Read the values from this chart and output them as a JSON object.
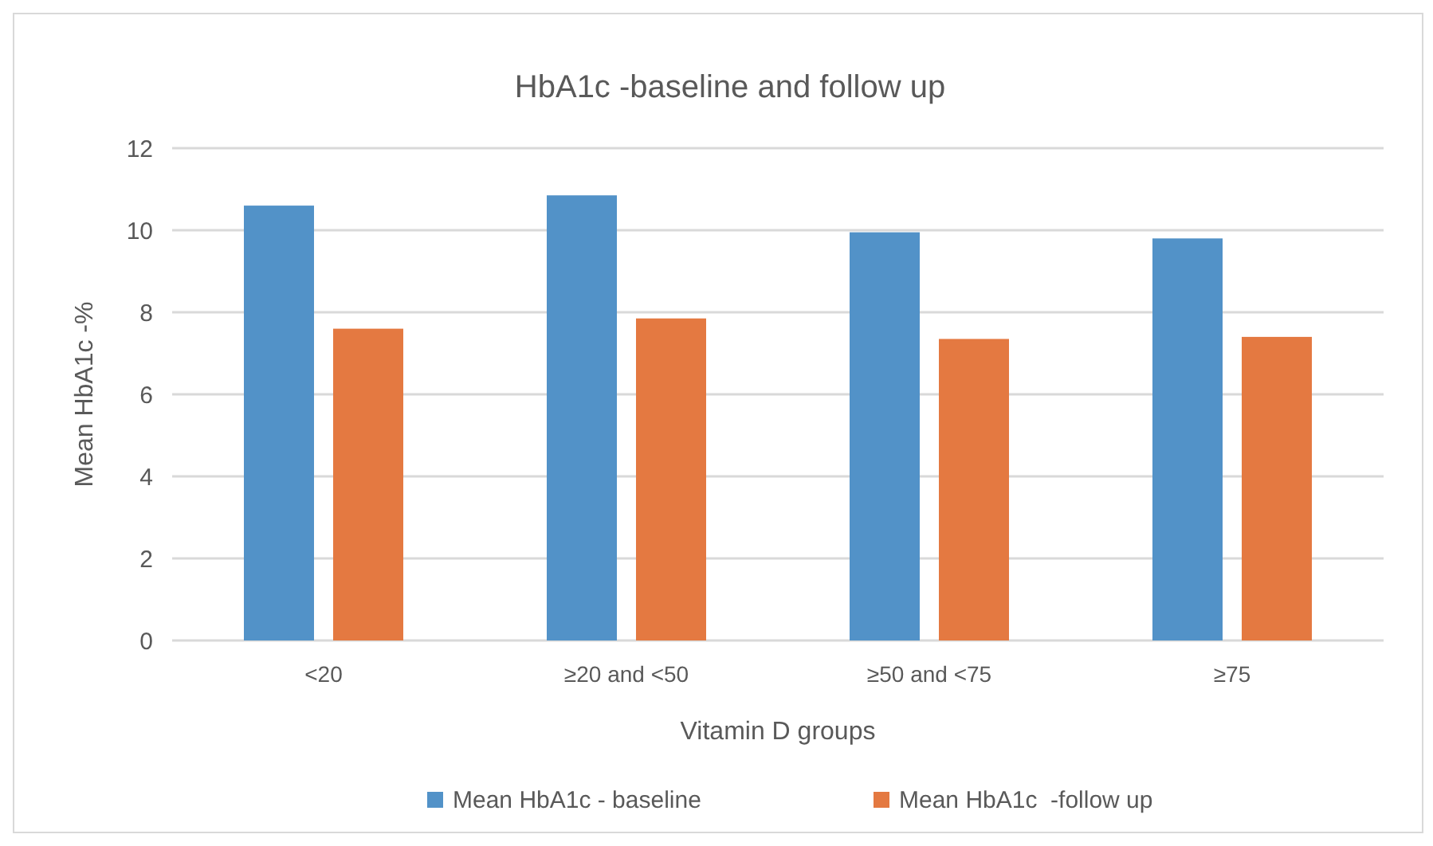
{
  "chart_data": {
    "type": "bar",
    "title": "HbA1c -baseline and follow up",
    "xlabel": "Vitamin D groups",
    "ylabel": "Mean HbA1c -%",
    "categories": [
      "<20",
      "≥20 and <50",
      "≥50 and <75",
      "≥75"
    ],
    "series": [
      {
        "name": "Mean HbA1c - baseline",
        "color": "#5292c8",
        "values": [
          10.6,
          10.85,
          9.95,
          9.8
        ]
      },
      {
        "name": "Mean HbA1c  -follow up",
        "color": "#e47941",
        "values": [
          7.6,
          7.85,
          7.35,
          7.4
        ]
      }
    ],
    "ylim": [
      0,
      12
    ],
    "yticks": [
      0,
      2,
      4,
      6,
      8,
      10,
      12
    ],
    "grid": "y",
    "legend": "bottom"
  }
}
